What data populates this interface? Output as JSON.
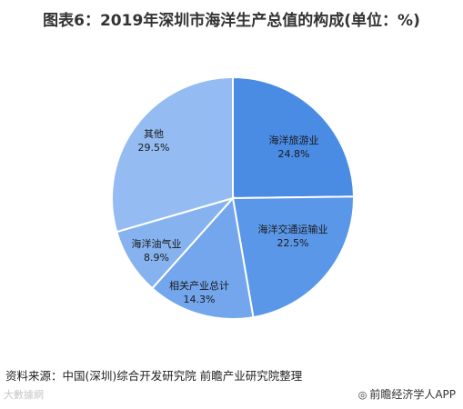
{
  "title": "图表6：2019年深圳市海洋生产总值的构成(单位：%)",
  "source": "资料来源：中国(深圳)综合开发研究院 前瞻产业研究院整理",
  "footer": {
    "left_logo": "大數據網",
    "right_brand": "前瞻经济学人APP"
  },
  "chart_data": {
    "type": "pie",
    "title": "图表6：2019年深圳市海洋生产总值的构成(单位：%)",
    "slices": [
      {
        "label": "海洋旅游业",
        "value": 24.8,
        "value_label": "24.8%",
        "color": "#4a8be4"
      },
      {
        "label": "海洋交通运输业",
        "value": 22.5,
        "value_label": "22.5%",
        "color": "#5b97e8"
      },
      {
        "label": "相关产业总计",
        "value": 14.3,
        "value_label": "14.3%",
        "color": "#73a6ec"
      },
      {
        "label": "海洋油气业",
        "value": 8.9,
        "value_label": "8.9%",
        "color": "#86b3ef"
      },
      {
        "label": "其他",
        "value": 29.5,
        "value_label": "29.5%",
        "color": "#94bcf2"
      }
    ]
  }
}
